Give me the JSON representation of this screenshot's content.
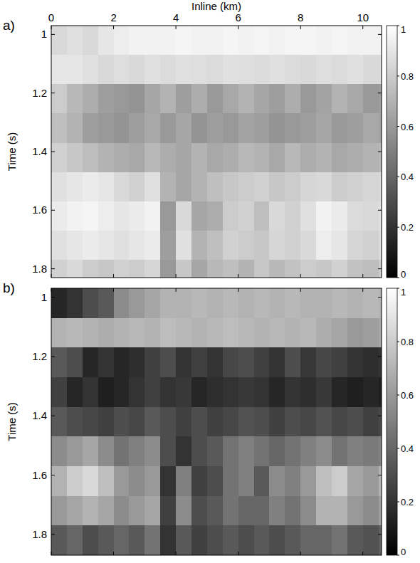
{
  "chart_data": [
    {
      "type": "heatmap",
      "title": "a)",
      "xlabel": "Inline (km)",
      "ylabel": "Time (s)",
      "xlim": [
        0,
        10.6
      ],
      "ylim": [
        0.97,
        1.83
      ],
      "xticks": [
        0,
        2,
        4,
        6,
        8,
        10
      ],
      "yticks": [
        1,
        1.2,
        1.4,
        1.6,
        1.8
      ],
      "x_bins": [
        0,
        0.5,
        1,
        1.5,
        2,
        2.5,
        3,
        3.5,
        4,
        4.5,
        5,
        5.5,
        6,
        6.5,
        7,
        7.5,
        8,
        8.5,
        9,
        9.5,
        10,
        10.5,
        10.6
      ],
      "y_bins": [
        0.97,
        1.07,
        1.17,
        1.27,
        1.37,
        1.47,
        1.57,
        1.67,
        1.77,
        1.83
      ],
      "cells": [
        [
          0.85,
          0.88,
          0.85,
          0.9,
          0.93,
          0.95,
          0.95,
          0.95,
          0.96,
          0.95,
          0.95,
          0.96,
          0.95,
          0.96,
          0.95,
          0.96,
          0.96,
          0.95,
          0.96,
          0.95,
          0.95,
          0.95
        ],
        [
          0.9,
          0.9,
          0.88,
          0.85,
          0.87,
          0.85,
          0.88,
          0.86,
          0.88,
          0.87,
          0.86,
          0.88,
          0.87,
          0.86,
          0.88,
          0.86,
          0.85,
          0.87,
          0.86,
          0.88,
          0.85,
          0.86
        ],
        [
          0.8,
          0.72,
          0.68,
          0.62,
          0.6,
          0.58,
          0.65,
          0.7,
          0.62,
          0.68,
          0.6,
          0.66,
          0.7,
          0.65,
          0.62,
          0.68,
          0.6,
          0.64,
          0.7,
          0.66,
          0.6,
          0.62
        ],
        [
          0.75,
          0.7,
          0.62,
          0.6,
          0.58,
          0.62,
          0.66,
          0.6,
          0.65,
          0.58,
          0.62,
          0.6,
          0.64,
          0.62,
          0.58,
          0.6,
          0.62,
          0.65,
          0.6,
          0.62,
          0.66,
          0.64
        ],
        [
          0.82,
          0.78,
          0.74,
          0.7,
          0.68,
          0.66,
          0.72,
          0.68,
          0.65,
          0.7,
          0.66,
          0.68,
          0.72,
          0.7,
          0.66,
          0.72,
          0.68,
          0.7,
          0.66,
          0.68,
          0.7,
          0.72
        ],
        [
          0.88,
          0.9,
          0.92,
          0.9,
          0.85,
          0.82,
          0.88,
          0.7,
          0.65,
          0.7,
          0.75,
          0.78,
          0.8,
          0.82,
          0.78,
          0.8,
          0.84,
          0.85,
          0.8,
          0.82,
          0.84,
          0.85
        ],
        [
          0.92,
          0.95,
          0.96,
          0.93,
          0.9,
          0.92,
          0.95,
          0.6,
          0.85,
          0.65,
          0.68,
          0.8,
          0.82,
          0.75,
          0.85,
          0.82,
          0.88,
          0.95,
          0.92,
          0.86,
          0.85,
          0.88
        ],
        [
          0.88,
          0.9,
          0.92,
          0.9,
          0.88,
          0.9,
          0.92,
          0.62,
          0.88,
          0.7,
          0.75,
          0.82,
          0.8,
          0.78,
          0.84,
          0.82,
          0.85,
          0.93,
          0.9,
          0.84,
          0.82,
          0.86
        ],
        [
          0.82,
          0.85,
          0.8,
          0.78,
          0.82,
          0.8,
          0.84,
          0.6,
          0.78,
          0.65,
          0.72,
          0.75,
          0.7,
          0.78,
          0.72,
          0.76,
          0.8,
          0.78,
          0.82,
          0.76,
          0.74,
          0.8
        ]
      ],
      "colorbar": {
        "range": [
          0,
          1
        ],
        "ticks": [
          0,
          0.2,
          0.4,
          0.6,
          0.8,
          1
        ]
      }
    },
    {
      "type": "heatmap",
      "title": "b)",
      "ylabel": "Time (s)",
      "xlim": [
        0,
        10.6
      ],
      "ylim": [
        0.97,
        1.87
      ],
      "xticks": [
        0,
        2,
        4,
        6,
        8,
        10
      ],
      "yticks": [
        1,
        1.2,
        1.4,
        1.6,
        1.8
      ],
      "tick_labels": "y",
      "x_bins": [
        0,
        0.5,
        1,
        1.5,
        2,
        2.5,
        3,
        3.5,
        4,
        4.5,
        5,
        5.5,
        6,
        6.5,
        7,
        7.5,
        8,
        8.5,
        9,
        9.5,
        10,
        10.5,
        10.6
      ],
      "y_bins": [
        0.97,
        1.07,
        1.17,
        1.27,
        1.37,
        1.47,
        1.57,
        1.67,
        1.77,
        1.87
      ],
      "cells": [
        [
          0.15,
          0.2,
          0.3,
          0.35,
          0.55,
          0.6,
          0.65,
          0.7,
          0.7,
          0.72,
          0.7,
          0.72,
          0.7,
          0.72,
          0.7,
          0.72,
          0.7,
          0.7,
          0.72,
          0.7,
          0.72,
          0.7
        ],
        [
          0.7,
          0.72,
          0.7,
          0.68,
          0.7,
          0.72,
          0.7,
          0.74,
          0.72,
          0.7,
          0.72,
          0.74,
          0.72,
          0.7,
          0.72,
          0.7,
          0.72,
          0.68,
          0.65,
          0.6,
          0.62,
          0.65
        ],
        [
          0.35,
          0.3,
          0.15,
          0.2,
          0.15,
          0.18,
          0.25,
          0.3,
          0.2,
          0.25,
          0.2,
          0.28,
          0.3,
          0.25,
          0.2,
          0.3,
          0.22,
          0.28,
          0.25,
          0.2,
          0.18,
          0.2
        ],
        [
          0.25,
          0.15,
          0.2,
          0.12,
          0.15,
          0.2,
          0.25,
          0.2,
          0.22,
          0.15,
          0.18,
          0.2,
          0.22,
          0.2,
          0.15,
          0.2,
          0.18,
          0.22,
          0.15,
          0.12,
          0.15,
          0.12
        ],
        [
          0.35,
          0.3,
          0.28,
          0.25,
          0.3,
          0.28,
          0.35,
          0.3,
          0.25,
          0.3,
          0.25,
          0.28,
          0.32,
          0.3,
          0.25,
          0.3,
          0.28,
          0.32,
          0.28,
          0.3,
          0.25,
          0.28
        ],
        [
          0.55,
          0.6,
          0.65,
          0.55,
          0.45,
          0.5,
          0.55,
          0.3,
          0.2,
          0.3,
          0.35,
          0.45,
          0.5,
          0.45,
          0.4,
          0.45,
          0.5,
          0.55,
          0.45,
          0.5,
          0.48,
          0.5
        ],
        [
          0.7,
          0.8,
          0.85,
          0.75,
          0.6,
          0.55,
          0.6,
          0.2,
          0.5,
          0.25,
          0.3,
          0.45,
          0.5,
          0.35,
          0.55,
          0.5,
          0.6,
          0.75,
          0.8,
          0.65,
          0.6,
          0.7
        ],
        [
          0.6,
          0.65,
          0.7,
          0.65,
          0.55,
          0.6,
          0.65,
          0.25,
          0.55,
          0.3,
          0.35,
          0.45,
          0.4,
          0.4,
          0.5,
          0.45,
          0.55,
          0.7,
          0.7,
          0.6,
          0.55,
          0.62
        ],
        [
          0.35,
          0.4,
          0.3,
          0.35,
          0.4,
          0.35,
          0.45,
          0.2,
          0.35,
          0.25,
          0.3,
          0.35,
          0.3,
          0.35,
          0.3,
          0.35,
          0.4,
          0.4,
          0.45,
          0.35,
          0.32,
          0.38
        ]
      ],
      "colorbar": {
        "range": [
          0,
          1
        ],
        "ticks": [
          0,
          0.2,
          0.4,
          0.6,
          0.8,
          1
        ]
      }
    }
  ]
}
